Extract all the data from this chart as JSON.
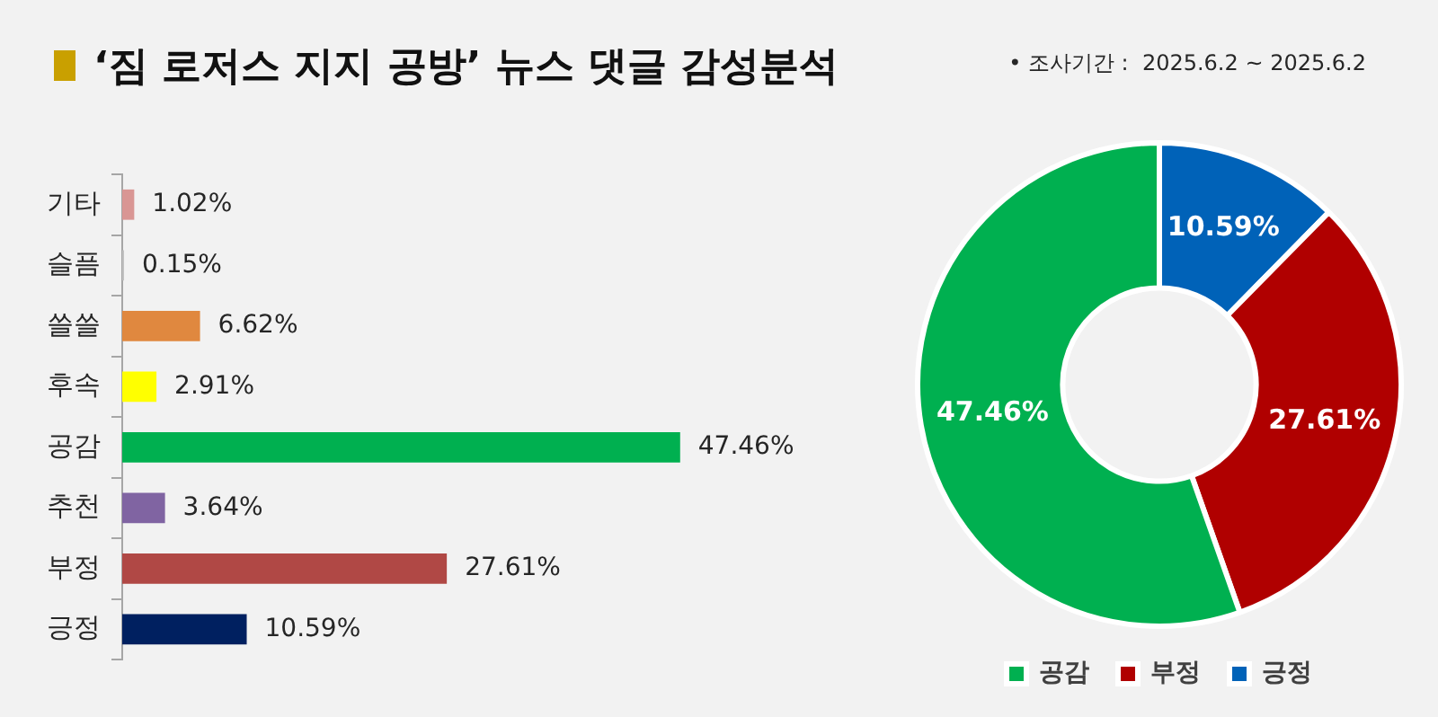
{
  "chart_data": [
    {
      "type": "bar",
      "orientation": "horizontal",
      "title": "‘짐 로저스 지지 공방’ 뉴스 댓글 감성분석",
      "annotations": [
        "• 조사기간 :  2025.6.2 ~ 2025.6.2"
      ],
      "categories": [
        "기타",
        "슬픔",
        "쓸쓸",
        "후속",
        "공감",
        "추천",
        "부정",
        "긍정"
      ],
      "values": [
        1.02,
        0.15,
        6.62,
        2.91,
        47.46,
        3.64,
        27.61,
        10.59
      ],
      "colors": [
        "#d99694",
        "#bfbfbf",
        "#e0883f",
        "#ffff00",
        "#00b050",
        "#8064a2",
        "#b04845",
        "#002060"
      ],
      "value_labels": [
        "1.02%",
        "0.15%",
        "6.62%",
        "2.91%",
        "47.46%",
        "3.64%",
        "27.61%",
        "10.59%"
      ],
      "grid": false,
      "legend": false
    },
    {
      "type": "donut",
      "categories": [
        "긍정",
        "부정",
        "공감"
      ],
      "values": [
        10.59,
        27.61,
        47.46
      ],
      "colors": [
        "#0062b8",
        "#b00000",
        "#00b050"
      ],
      "value_labels": [
        "10.59%",
        "27.61%",
        "47.46%"
      ],
      "legend": "bottom"
    }
  ]
}
